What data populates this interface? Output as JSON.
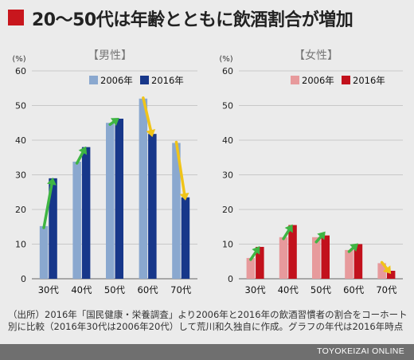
{
  "title": "20〜50代は年齢とともに飲酒割合が増加",
  "note": "（出所）2016年「国民健康・栄養調査」より2006年と2016年の飲酒習慣者の割合をコーホート別に比較（2016年30代は2006年20代）して荒川和久独自に作成。グラフの年代は2016年時点",
  "footer": "TOYOKEIZAI ONLINE",
  "colors": {
    "male_2006": "#8aa8cf",
    "male_2016": "#17378a",
    "female_2006": "#e79a9c",
    "female_2016": "#c2111c",
    "arrow_up": "#3fb543",
    "arrow_down": "#f0c419"
  },
  "chart_data": [
    {
      "type": "bar",
      "title": "【男性】",
      "unit_label": "(%)",
      "categories": [
        "30代",
        "40代",
        "50代",
        "60代",
        "70代"
      ],
      "series": [
        {
          "name": "2006年",
          "values": [
            15.2,
            33.8,
            45.0,
            52.0,
            39.2
          ]
        },
        {
          "name": "2016年",
          "values": [
            29.0,
            38.0,
            46.2,
            41.8,
            23.5
          ]
        }
      ],
      "ylim": [
        0,
        60
      ],
      "yticks": [
        0,
        10,
        20,
        30,
        40,
        50,
        60
      ],
      "grid": true,
      "legend": "top",
      "arrows": [
        "up",
        "up",
        "up",
        "down",
        "down"
      ]
    },
    {
      "type": "bar",
      "title": "【女性】",
      "unit_label": "(%)",
      "categories": [
        "30代",
        "40代",
        "50代",
        "60代",
        "70代"
      ],
      "series": [
        {
          "name": "2006年",
          "values": [
            6.0,
            12.0,
            12.0,
            8.3,
            4.5
          ]
        },
        {
          "name": "2016年",
          "values": [
            9.2,
            15.5,
            12.5,
            10.0,
            2.3
          ]
        }
      ],
      "ylim": [
        0,
        60
      ],
      "yticks": [
        0,
        10,
        20,
        30,
        40,
        50,
        60
      ],
      "grid": true,
      "legend": "top",
      "arrows": [
        "up",
        "up",
        "up",
        "up",
        "down"
      ]
    }
  ]
}
